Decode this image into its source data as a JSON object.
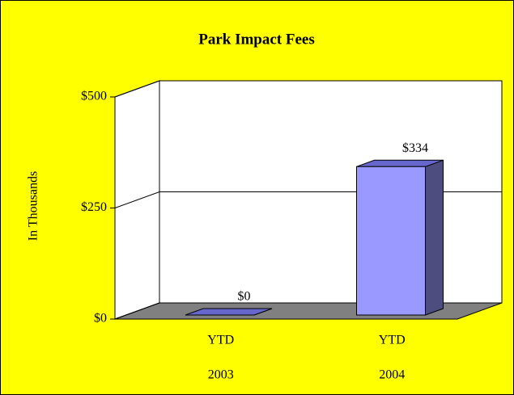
{
  "chart_data": {
    "type": "bar3d",
    "title": "Park Impact Fees",
    "ylabel": "In Thousands",
    "categories": [
      [
        "YTD",
        "2003"
      ],
      [
        "YTD",
        "2004"
      ]
    ],
    "values": [
      0,
      334
    ],
    "value_labels": [
      "$0",
      "$334"
    ],
    "color": "#9999ff",
    "ylim": [
      0,
      500
    ],
    "yticks": [
      {
        "value": 0,
        "label": "$0"
      },
      {
        "value": 250,
        "label": "$250"
      },
      {
        "value": 500,
        "label": "$500"
      }
    ],
    "grid": true
  }
}
